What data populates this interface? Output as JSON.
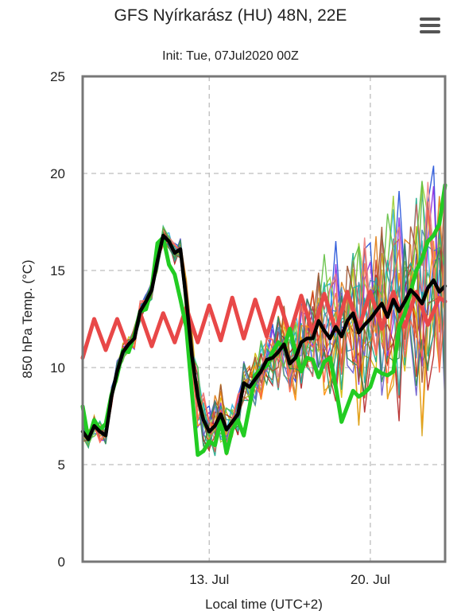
{
  "title": "GFS Nyírkarász (HU) 48N, 22E",
  "subtitle": "Init: Tue, 07Jul2020 00Z",
  "menu_icon": "hamburger-menu-icon",
  "chart_data": {
    "type": "line",
    "xlabel": "Local time (UTC+2)",
    "ylabel": "850 hPa Temp. (°C)",
    "ylim": [
      0,
      25
    ],
    "yticks": [
      0,
      5,
      10,
      15,
      20,
      25
    ],
    "xlim": [
      0,
      15.75
    ],
    "xticks": [
      {
        "x": 5.5,
        "label": "13. Jul"
      },
      {
        "x": 12.5,
        "label": "20. Jul"
      }
    ],
    "grid": true,
    "colors": {
      "climatology": "#e84848",
      "control": "#22cc22",
      "mean": "#000000",
      "members": [
        "#e07b12",
        "#1f4fd8",
        "#2ab0e0",
        "#d4b800",
        "#c83a1e",
        "#8a2be2",
        "#9acd32",
        "#1aa88a",
        "#b22222",
        "#ff8c00",
        "#4682b4",
        "#cd5c5c",
        "#20b2aa",
        "#daa520",
        "#6a5acd",
        "#f08080",
        "#5fbf3f",
        "#a0522d",
        "#2e8b57",
        "#ff6347"
      ]
    },
    "series": [
      {
        "role": "climatology",
        "x": [
          0,
          0.5,
          1.0,
          1.5,
          2.0,
          2.5,
          3.0,
          3.5,
          4.0,
          4.5,
          5.0,
          5.5,
          6.0,
          6.5,
          7.0,
          7.5,
          8.0,
          8.5,
          9.0,
          9.5,
          10.0,
          10.5,
          11.0,
          11.5,
          12.0,
          12.5,
          13.0,
          13.5,
          14.0,
          14.5,
          15.0,
          15.5,
          15.75
        ],
        "values": [
          10.5,
          12.5,
          10.9,
          12.5,
          10.9,
          12.8,
          11.1,
          12.8,
          11.3,
          13.1,
          11.3,
          13.2,
          11.4,
          13.6,
          11.5,
          13.5,
          11.6,
          13.6,
          11.7,
          13.7,
          11.8,
          13.8,
          11.9,
          13.9,
          12.0,
          13.9,
          12.0,
          13.9,
          12.1,
          13.9,
          12.2,
          13.6,
          13.4
        ]
      },
      {
        "role": "control",
        "x": [
          0,
          0.25,
          0.5,
          0.75,
          1.0,
          1.25,
          1.5,
          1.75,
          2.0,
          2.25,
          2.5,
          2.75,
          3.0,
          3.25,
          3.5,
          3.75,
          4.0,
          4.25,
          4.5,
          4.75,
          5.0,
          5.25,
          5.5,
          5.75,
          6.0,
          6.25,
          6.5,
          6.75,
          7.0,
          7.25,
          7.5,
          7.75,
          8.0,
          8.25,
          8.5,
          8.75,
          9.0,
          9.25,
          9.5,
          9.75,
          10.0,
          10.25,
          10.5,
          10.75,
          11.0,
          11.25,
          11.5,
          11.75,
          12.0,
          12.25,
          12.5,
          12.75,
          13.0,
          13.25,
          13.5,
          13.75,
          14.0,
          14.25,
          14.5,
          14.75,
          15.0,
          15.25,
          15.5,
          15.75
        ],
        "values": [
          8.0,
          6.3,
          7.3,
          6.8,
          7.1,
          8.6,
          9.6,
          10.9,
          10.8,
          11.7,
          12.9,
          13.0,
          14.1,
          16.4,
          16.7,
          15.3,
          14.8,
          13.5,
          12.1,
          8.7,
          5.5,
          5.7,
          6.2,
          6.0,
          7.3,
          5.6,
          6.8,
          7.3,
          6.5,
          8.0,
          9.6,
          9.9,
          10.1,
          10.8,
          11.3,
          11.0,
          12.0,
          10.8,
          9.8,
          10.5,
          10.4,
          9.5,
          10.3,
          10.5,
          9.0,
          7.2,
          8.0,
          8.8,
          8.5,
          8.7,
          9.0,
          9.9,
          9.7,
          9.6,
          9.8,
          12.1,
          12.8,
          13.9,
          15.0,
          15.6,
          16.5,
          16.8,
          17.4,
          19.4
        ]
      },
      {
        "role": "mean",
        "x": [
          0,
          0.25,
          0.5,
          0.75,
          1.0,
          1.25,
          1.5,
          1.75,
          2.0,
          2.25,
          2.5,
          2.75,
          3.0,
          3.25,
          3.5,
          3.75,
          4.0,
          4.25,
          4.5,
          4.75,
          5.0,
          5.25,
          5.5,
          5.75,
          6.0,
          6.25,
          6.5,
          6.75,
          7.0,
          7.25,
          7.5,
          7.75,
          8.0,
          8.25,
          8.5,
          8.75,
          9.0,
          9.25,
          9.5,
          9.75,
          10.0,
          10.25,
          10.5,
          10.75,
          11.0,
          11.25,
          11.5,
          11.75,
          12.0,
          12.25,
          12.5,
          12.75,
          13.0,
          13.25,
          13.5,
          13.75,
          14.0,
          14.25,
          14.5,
          14.75,
          15.0,
          15.25,
          15.5,
          15.75
        ],
        "values": [
          6.7,
          6.3,
          7.0,
          6.7,
          6.5,
          8.5,
          9.8,
          10.8,
          11.2,
          11.5,
          12.9,
          13.4,
          14.0,
          15.5,
          16.8,
          16.5,
          15.9,
          16.1,
          13.5,
          10.6,
          8.5,
          7.3,
          6.7,
          7.0,
          7.6,
          6.8,
          7.2,
          7.6,
          9.2,
          9.0,
          9.4,
          9.8,
          10.4,
          10.5,
          10.8,
          11.2,
          10.2,
          10.5,
          11.3,
          11.5,
          11.5,
          12.4,
          11.9,
          11.5,
          12.1,
          11.6,
          12.4,
          12.8,
          11.8,
          12.2,
          12.5,
          12.9,
          13.3,
          12.6,
          13.5,
          12.9,
          13.4,
          14.0,
          13.7,
          13.3,
          14.1,
          14.5,
          13.9,
          14.2
        ]
      }
    ]
  }
}
